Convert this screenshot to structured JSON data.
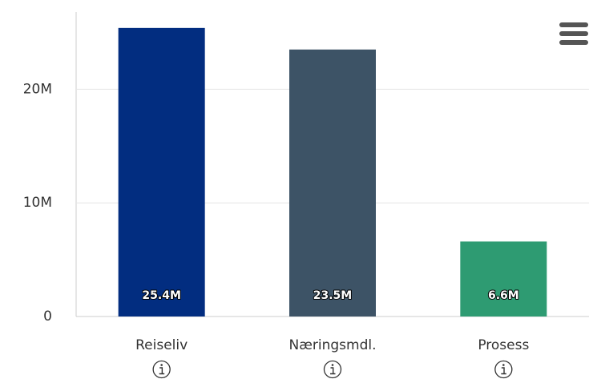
{
  "chart_data": {
    "type": "bar",
    "categories": [
      "Reiseliv",
      "Næringsmdl.",
      "Prosess"
    ],
    "values": [
      25400000,
      23500000,
      6600000
    ],
    "value_labels": [
      "25.4M",
      "23.5M",
      "6.6M"
    ],
    "colors": [
      "#022d80",
      "#3d5366",
      "#2e9b72"
    ],
    "ylim": [
      0,
      26800000
    ],
    "yticks": [
      0,
      {
        "value": 10000000,
        "label": "10M"
      },
      {
        "value": 20000000,
        "label": "20M"
      }
    ],
    "grid": true
  }
}
